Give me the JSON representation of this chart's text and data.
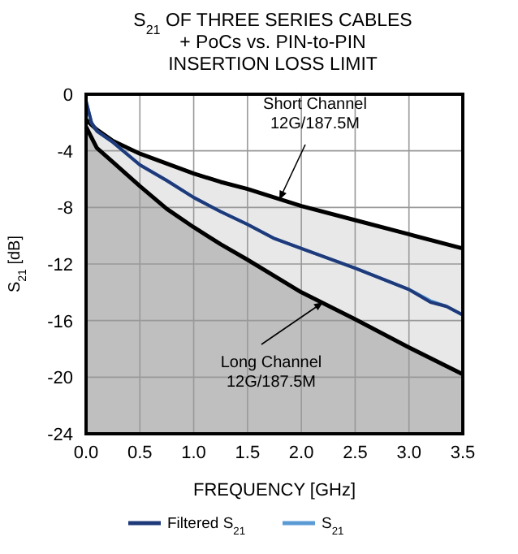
{
  "chart_data": {
    "type": "line",
    "title": "S$_{21}$ OF THREE SERIES CABLES\n+ PoCs vs. PIN-to-PIN\nINSERTION LOSS LIMIT",
    "xlabel": "FREQUENCY [GHz]",
    "ylabel": "S$_{21}$ [dB]",
    "xlim": [
      0,
      3.5
    ],
    "xticks": [
      {
        "value": 0,
        "label": "0.0"
      },
      0.5,
      {
        "value": 1,
        "label": "1.0"
      },
      1.5,
      {
        "value": 2,
        "label": "2.0"
      },
      2.5,
      {
        "value": 3,
        "label": "3.0"
      },
      3.5
    ],
    "ylim": [
      -24,
      0
    ],
    "yticks": [
      -24,
      -20,
      -16,
      -12,
      -8,
      -4,
      0
    ],
    "grid": true,
    "legend": "bottom",
    "series": [
      {
        "color": "#000000",
        "x": [
          0,
          0.1,
          0.25,
          0.5,
          0.75,
          1,
          1.25,
          1.5,
          2,
          2.5,
          3,
          3.5
        ],
        "values": [
          -1.8,
          -2.5,
          -3.3,
          -4.2,
          -4.9,
          -5.6,
          -6.2,
          -6.7,
          -7.9,
          -8.9,
          -9.9,
          -10.9
        ],
        "upper": [
          -1.8,
          -2.5,
          -3.3,
          -4.2,
          -4.9,
          -5.6,
          -6.2,
          -6.7,
          -7.9,
          -8.9,
          -9.9,
          -10.9
        ],
        "lower": [
          -2.3,
          -3.8,
          -4.8,
          -6.5,
          -8.1,
          -9.4,
          -10.6,
          -11.7,
          -14,
          -15.9,
          -17.9,
          -19.8
        ]
      },
      {
        "color": "#000000",
        "x": [
          0,
          0.1,
          0.25,
          0.5,
          0.75,
          1,
          1.25,
          1.5,
          2,
          2.5,
          3,
          3.5
        ],
        "values": [
          -2.3,
          -3.8,
          -4.8,
          -6.5,
          -8.1,
          -9.4,
          -10.6,
          -11.7,
          -14,
          -15.9,
          -17.9,
          -19.8
        ],
        "upper": [
          -2.3,
          -3.8,
          -4.8,
          -6.5,
          -8.1,
          -9.4,
          -10.6,
          -11.7,
          -14,
          -15.9,
          -17.9,
          -19.8
        ],
        "lower": [
          -24,
          -24,
          -24,
          -24,
          -24,
          -24,
          -24,
          -24,
          -24,
          -24,
          -24,
          -24
        ]
      },
      {
        "name": "S$_{21}$",
        "color": "#5b9bd5",
        "x": [
          0,
          0.05,
          0.1,
          0.25,
          0.5,
          0.75,
          1,
          1.25,
          1.5,
          1.75,
          2,
          2.5,
          3,
          3.2,
          3.35,
          3.5
        ],
        "values": [
          -0.5,
          -2,
          -2.6,
          -3.4,
          -5,
          -6.1,
          -7.3,
          -8.3,
          -9.2,
          -10.2,
          -10.9,
          -12.3,
          -13.8,
          -14.6,
          -15,
          -15.6
        ]
      },
      {
        "name": "Filtered S$_{21}$",
        "color": "#1f3a7a",
        "x": [
          0,
          0.05,
          0.1,
          0.25,
          0.5,
          0.75,
          1,
          1.25,
          1.5,
          1.75,
          2,
          2.5,
          3,
          3.2,
          3.35,
          3.5
        ],
        "values": [
          -0.5,
          -2,
          -2.6,
          -3.4,
          -5,
          -6.1,
          -7.3,
          -8.3,
          -9.2,
          -10.2,
          -10.9,
          -12.3,
          -13.8,
          -14.7,
          -15,
          -15.6
        ]
      }
    ],
    "annotations": [
      "Short Channel\n12G/187.5M",
      "Long Channel\n12G/187.5M"
    ]
  }
}
